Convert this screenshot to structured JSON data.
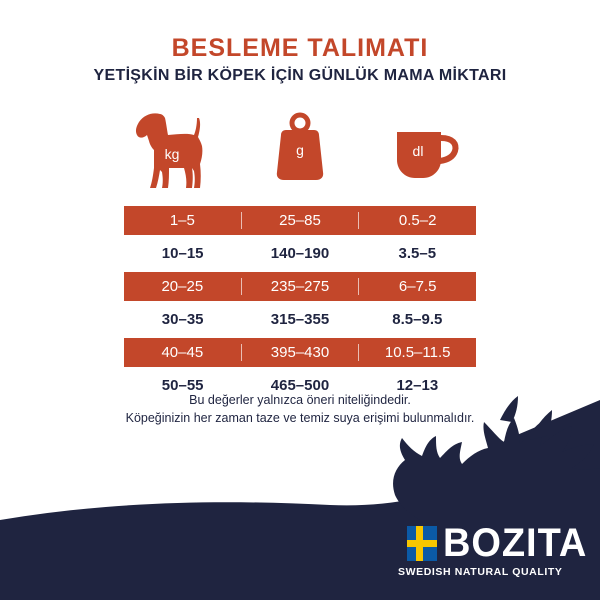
{
  "header": {
    "title": "BESLEME TALIMATI",
    "subtitle": "YETİŞKİN BİR KÖPEK İÇİN GÜNLÜK MAMA MİKTARI"
  },
  "icons": [
    {
      "name": "dog-icon",
      "label": "kg"
    },
    {
      "name": "weight-icon",
      "label": "g"
    },
    {
      "name": "cup-icon",
      "label": "dl"
    }
  ],
  "table": {
    "rows": [
      {
        "style": "shaded",
        "cells": [
          "1–5",
          "25–85",
          "0.5–2"
        ]
      },
      {
        "style": "plain",
        "cells": [
          "10–15",
          "140–190",
          "3.5–5"
        ]
      },
      {
        "style": "shaded",
        "cells": [
          "20–25",
          "235–275",
          "6–7.5"
        ]
      },
      {
        "style": "plain",
        "cells": [
          "30–35",
          "315–355",
          "8.5–9.5"
        ]
      },
      {
        "style": "shaded",
        "cells": [
          "40–45",
          "395–430",
          "10.5–11.5"
        ]
      },
      {
        "style": "plain",
        "cells": [
          "50–55",
          "465–500",
          "12–13"
        ]
      }
    ]
  },
  "notes": [
    "Bu değerler yalnızca öneri niteliğindedir.",
    "Köpeğinizin her zaman taze ve temiz suya erişimi bulunmalıdır."
  ],
  "brand": {
    "name": "BOZITA",
    "tagline": "SWEDISH NATURAL QUALITY"
  },
  "colors": {
    "accent": "#c3472a",
    "navy": "#1f2440",
    "flag_blue": "#0b5aa6",
    "flag_yellow": "#f7c600"
  }
}
